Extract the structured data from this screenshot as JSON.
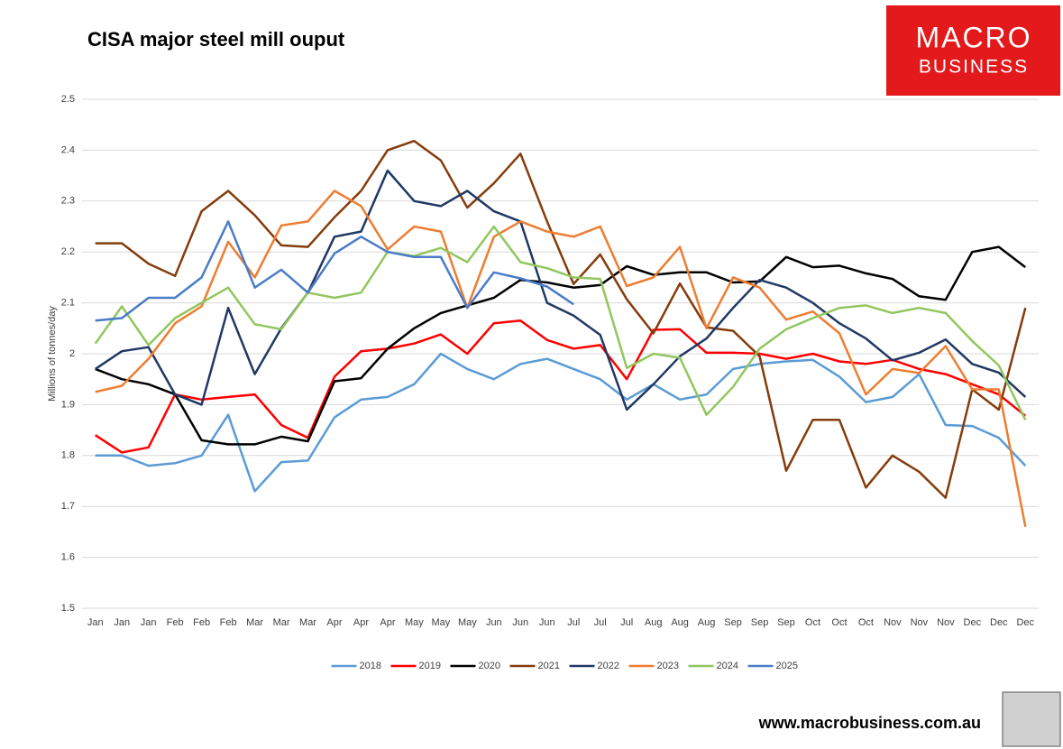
{
  "chart_data": {
    "type": "line",
    "title": "CISA major steel mill ouput",
    "y_label": "Millions of tonnes/day",
    "categories": [
      "Jan",
      "Jan",
      "Jan",
      "Feb",
      "Feb",
      "Feb",
      "Mar",
      "Mar",
      "Mar",
      "Apr",
      "Apr",
      "Apr",
      "May",
      "May",
      "May",
      "Jun",
      "Jun",
      "Jun",
      "Jul",
      "Jul",
      "Jul",
      "Aug",
      "Aug",
      "Aug",
      "Sep",
      "Sep",
      "Sep",
      "Oct",
      "Oct",
      "Oct",
      "Nov",
      "Nov",
      "Nov",
      "Dec",
      "Dec",
      "Dec"
    ],
    "ylim": [
      1.5,
      2.5
    ],
    "yticks": [
      1.5,
      1.6,
      1.7,
      1.8,
      1.9,
      2,
      2.1,
      2.2,
      2.3,
      2.4,
      2.5
    ],
    "grid": true,
    "legend": "bottom",
    "series": [
      {
        "name": "2018",
        "color": "#5b9bd5",
        "values": [
          1.8,
          1.8,
          1.78,
          1.785,
          1.8,
          1.88,
          1.73,
          1.787,
          1.79,
          1.875,
          1.91,
          1.915,
          1.94,
          2.0,
          1.97,
          1.95,
          1.98,
          1.99,
          1.97,
          1.95,
          1.91,
          1.94,
          1.91,
          1.92,
          1.97,
          1.98,
          1.985,
          1.988,
          1.955,
          1.905,
          1.915,
          1.96,
          1.86,
          1.858,
          1.835,
          1.78
        ]
      },
      {
        "name": "2019",
        "color": "#ff0000",
        "values": [
          1.84,
          1.806,
          1.816,
          1.92,
          1.91,
          1.915,
          1.92,
          1.86,
          1.835,
          1.955,
          2.005,
          2.01,
          2.02,
          2.038,
          2.0,
          2.06,
          2.065,
          2.027,
          2.01,
          2.017,
          1.95,
          2.047,
          2.048,
          2.002,
          2.002,
          2.0,
          1.99,
          2.0,
          1.985,
          1.98,
          1.988,
          1.97,
          1.96,
          1.94,
          1.92,
          1.878
        ]
      },
      {
        "name": "2020",
        "color": "#000000",
        "values": [
          1.97,
          1.95,
          1.94,
          1.92,
          1.83,
          1.822,
          1.822,
          1.837,
          1.828,
          1.946,
          1.952,
          2.01,
          2.05,
          2.08,
          2.095,
          2.11,
          2.145,
          2.14,
          2.13,
          2.135,
          2.172,
          2.155,
          2.16,
          2.16,
          2.14,
          2.142,
          2.19,
          2.17,
          2.173,
          2.158,
          2.147,
          2.113,
          2.106,
          2.2,
          2.21,
          2.17
        ]
      },
      {
        "name": "2021",
        "color": "#843c0c",
        "values": [
          2.217,
          2.217,
          2.177,
          2.153,
          2.28,
          2.32,
          2.272,
          2.213,
          2.21,
          2.268,
          2.32,
          2.4,
          2.418,
          2.38,
          2.287,
          2.335,
          2.393,
          2.26,
          2.137,
          2.195,
          2.107,
          2.04,
          2.138,
          2.052,
          2.045,
          1.995,
          1.77,
          1.87,
          1.87,
          1.737,
          1.8,
          1.768,
          1.717,
          1.93,
          1.89,
          2.09
        ]
      },
      {
        "name": "2022",
        "color": "#203864",
        "values": [
          1.97,
          2.005,
          2.013,
          1.92,
          1.9,
          2.09,
          1.96,
          2.05,
          2.12,
          2.23,
          2.24,
          2.36,
          2.3,
          2.29,
          2.32,
          2.28,
          2.26,
          2.1,
          2.075,
          2.037,
          1.89,
          1.94,
          1.995,
          2.03,
          2.09,
          2.145,
          2.13,
          2.1,
          2.06,
          2.03,
          1.987,
          2.002,
          2.028,
          1.98,
          1.963,
          1.915
        ]
      },
      {
        "name": "2023",
        "color": "#ed7d31",
        "values": [
          1.925,
          1.937,
          1.99,
          2.06,
          2.093,
          2.22,
          2.15,
          2.252,
          2.26,
          2.32,
          2.29,
          2.205,
          2.25,
          2.24,
          2.09,
          2.23,
          2.26,
          2.24,
          2.23,
          2.25,
          2.133,
          2.15,
          2.21,
          2.05,
          2.15,
          2.13,
          2.067,
          2.083,
          2.04,
          1.92,
          1.97,
          1.962,
          2.015,
          1.93,
          1.93,
          1.66
        ]
      },
      {
        "name": "2024",
        "color": "#92c65e",
        "values": [
          2.02,
          2.093,
          2.017,
          2.07,
          2.1,
          2.13,
          2.058,
          2.048,
          2.12,
          2.11,
          2.12,
          2.2,
          2.192,
          2.208,
          2.18,
          2.25,
          2.18,
          2.168,
          2.15,
          2.147,
          1.972,
          2.0,
          1.992,
          1.88,
          1.935,
          2.01,
          2.048,
          2.07,
          2.09,
          2.095,
          2.08,
          2.09,
          2.08,
          2.025,
          1.977,
          1.87
        ]
      },
      {
        "name": "2025",
        "color": "#4a7cc8",
        "values": [
          2.065,
          2.07,
          2.11,
          2.11,
          2.15,
          2.26,
          2.13,
          2.165,
          2.12,
          2.197,
          2.23,
          2.2,
          2.19,
          2.19,
          2.09,
          2.16,
          2.148,
          2.132,
          2.097,
          null,
          null,
          null,
          null,
          null,
          null,
          null,
          null,
          null,
          null,
          null,
          null,
          null,
          null,
          null,
          null,
          null
        ]
      }
    ]
  },
  "brand": {
    "line1": "MACRO",
    "line2": "BUSINESS"
  },
  "website": "www.macrobusiness.com.au"
}
